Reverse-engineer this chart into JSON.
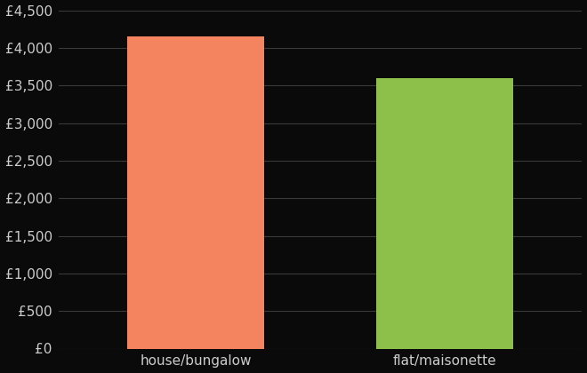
{
  "categories": [
    "house/bungalow",
    "flat/maisonette"
  ],
  "values": [
    4150,
    3600
  ],
  "bar_colors": [
    "#F4845F",
    "#8DC04B"
  ],
  "background_color": "#0a0a0a",
  "text_color": "#cccccc",
  "grid_color": "#3a3a3a",
  "ylim": [
    0,
    4500
  ],
  "yticks": [
    0,
    500,
    1000,
    1500,
    2000,
    2500,
    3000,
    3500,
    4000,
    4500
  ],
  "tick_fontsize": 11,
  "label_fontsize": 11,
  "bar_width": 0.55
}
